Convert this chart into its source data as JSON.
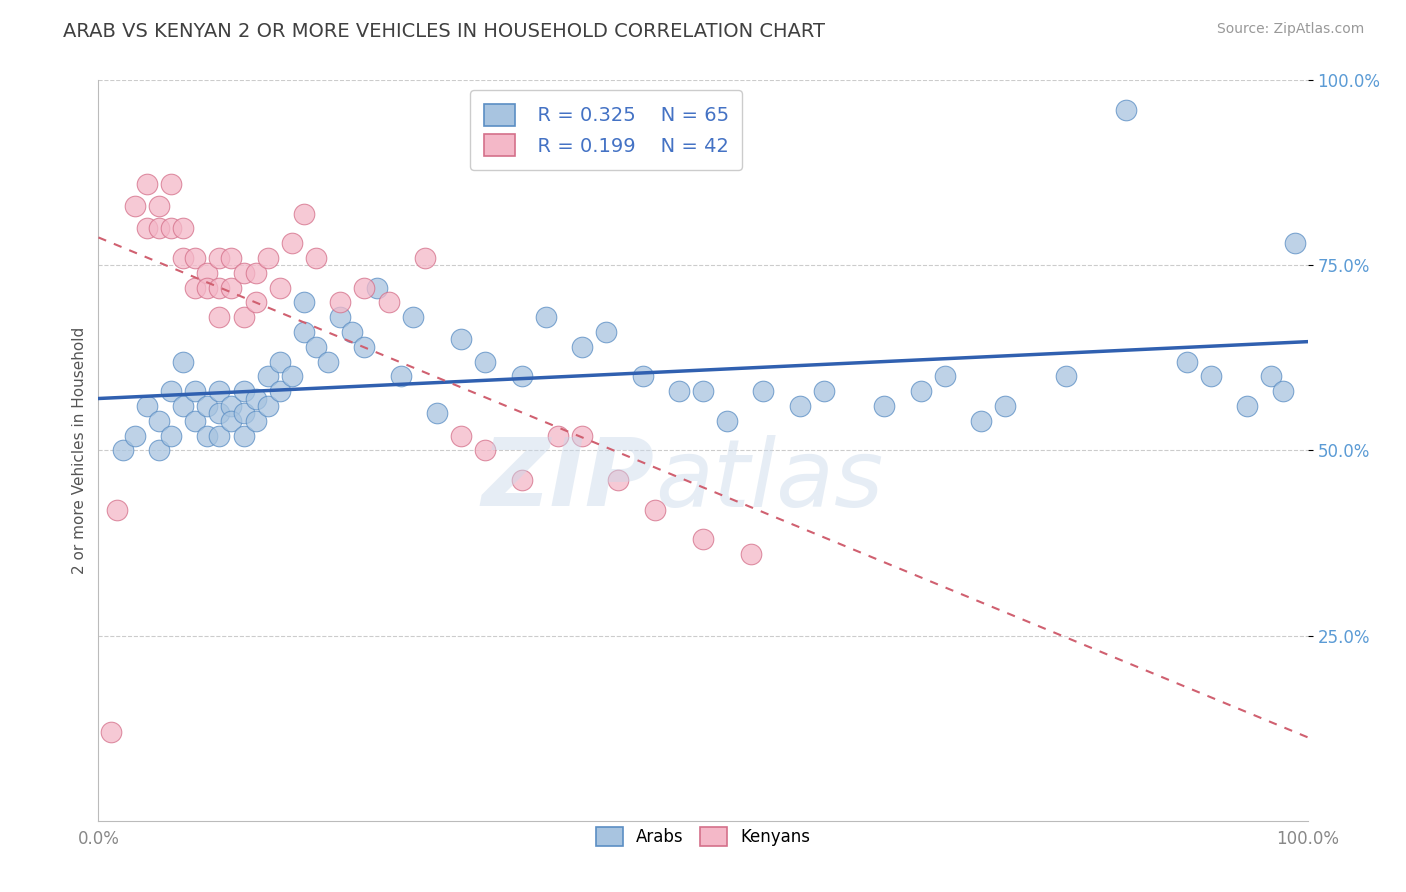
{
  "title": "ARAB VS KENYAN 2 OR MORE VEHICLES IN HOUSEHOLD CORRELATION CHART",
  "source": "Source: ZipAtlas.com",
  "ylabel": "2 or more Vehicles in Household",
  "legend_blue_r": "R = 0.325",
  "legend_blue_n": "N = 65",
  "legend_pink_r": "R = 0.199",
  "legend_pink_n": "N = 42",
  "blue_fill": "#a8c4e0",
  "blue_edge": "#5b8ec4",
  "pink_fill": "#f4b8c8",
  "pink_edge": "#d4708a",
  "blue_line_color": "#3060b0",
  "pink_line_color": "#d06070",
  "grid_color": "#cccccc",
  "rtext_color": "#4472c4",
  "ytext_color": "#5b9bd5",
  "blue_x": [
    0.02,
    0.03,
    0.04,
    0.05,
    0.05,
    0.06,
    0.06,
    0.07,
    0.07,
    0.08,
    0.08,
    0.09,
    0.09,
    0.1,
    0.1,
    0.1,
    0.11,
    0.11,
    0.12,
    0.12,
    0.12,
    0.13,
    0.13,
    0.14,
    0.14,
    0.15,
    0.15,
    0.16,
    0.17,
    0.17,
    0.18,
    0.19,
    0.2,
    0.21,
    0.22,
    0.23,
    0.25,
    0.26,
    0.28,
    0.3,
    0.32,
    0.35,
    0.37,
    0.4,
    0.42,
    0.45,
    0.48,
    0.5,
    0.52,
    0.55,
    0.58,
    0.6,
    0.65,
    0.68,
    0.7,
    0.73,
    0.75,
    0.8,
    0.85,
    0.9,
    0.92,
    0.95,
    0.97,
    0.98,
    0.99
  ],
  "blue_y": [
    0.5,
    0.52,
    0.56,
    0.54,
    0.5,
    0.58,
    0.52,
    0.62,
    0.56,
    0.58,
    0.54,
    0.52,
    0.56,
    0.55,
    0.58,
    0.52,
    0.56,
    0.54,
    0.58,
    0.55,
    0.52,
    0.57,
    0.54,
    0.6,
    0.56,
    0.62,
    0.58,
    0.6,
    0.66,
    0.7,
    0.64,
    0.62,
    0.68,
    0.66,
    0.64,
    0.72,
    0.6,
    0.68,
    0.55,
    0.65,
    0.62,
    0.6,
    0.68,
    0.64,
    0.66,
    0.6,
    0.58,
    0.58,
    0.54,
    0.58,
    0.56,
    0.58,
    0.56,
    0.58,
    0.6,
    0.54,
    0.56,
    0.6,
    0.96,
    0.62,
    0.6,
    0.56,
    0.6,
    0.58,
    0.78
  ],
  "pink_x": [
    0.015,
    0.03,
    0.04,
    0.04,
    0.05,
    0.05,
    0.06,
    0.06,
    0.07,
    0.07,
    0.08,
    0.08,
    0.09,
    0.09,
    0.1,
    0.1,
    0.1,
    0.11,
    0.11,
    0.12,
    0.12,
    0.13,
    0.13,
    0.14,
    0.15,
    0.16,
    0.17,
    0.18,
    0.2,
    0.22,
    0.24,
    0.27,
    0.3,
    0.32,
    0.35,
    0.38,
    0.4,
    0.43,
    0.46,
    0.5,
    0.54,
    0.01
  ],
  "pink_y": [
    0.42,
    0.83,
    0.8,
    0.86,
    0.83,
    0.8,
    0.86,
    0.8,
    0.8,
    0.76,
    0.76,
    0.72,
    0.74,
    0.72,
    0.76,
    0.72,
    0.68,
    0.76,
    0.72,
    0.74,
    0.68,
    0.74,
    0.7,
    0.76,
    0.72,
    0.78,
    0.82,
    0.76,
    0.7,
    0.72,
    0.7,
    0.76,
    0.52,
    0.5,
    0.46,
    0.52,
    0.52,
    0.46,
    0.42,
    0.38,
    0.36,
    0.12
  ]
}
